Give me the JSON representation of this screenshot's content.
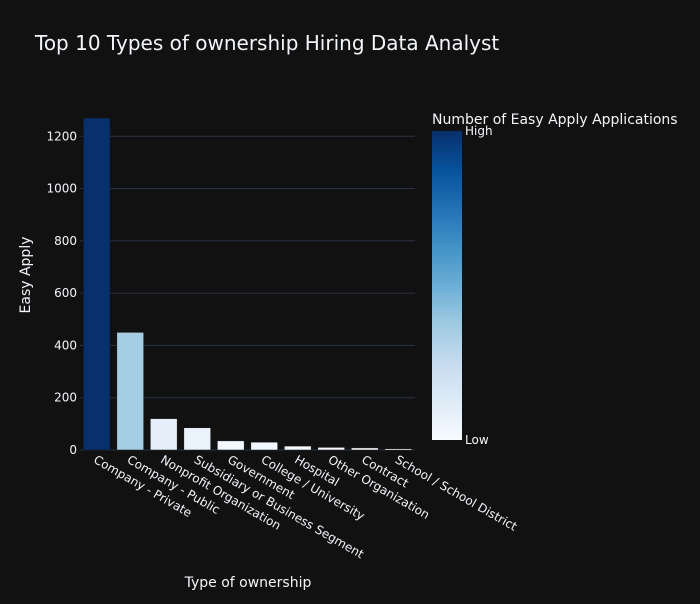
{
  "chart_data": {
    "type": "bar",
    "title": "Top 10 Types of ownership Hiring Data Analyst",
    "xlabel": "Type of ownership",
    "ylabel": "Easy Apply",
    "categories": [
      "Company - Private",
      "Company - Public",
      "Nonprofit Organization",
      "Subsidiary or Business Segment",
      "Government",
      "College / University",
      "Hospital",
      "Other Organization",
      "Contract",
      "School / School District"
    ],
    "values": [
      1270,
      450,
      120,
      85,
      35,
      30,
      15,
      10,
      8,
      5
    ],
    "ylim": [
      0,
      1270
    ],
    "yticks": [
      0,
      200,
      400,
      600,
      800,
      1000,
      1200
    ],
    "grid": true,
    "colorbar": {
      "title": "Number of Easy Apply Applications",
      "high_label": "High",
      "low_label": "Low",
      "colorscale": "Blues",
      "low_color": "#f7fbff",
      "high_color": "#08306b"
    }
  }
}
